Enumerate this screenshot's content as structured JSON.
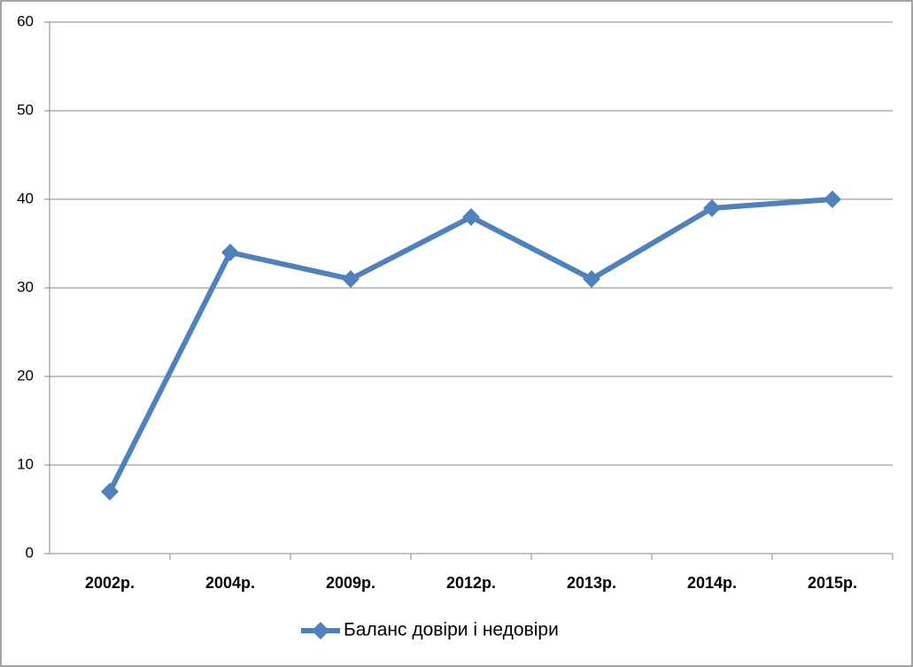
{
  "chart_data": {
    "type": "line",
    "categories": [
      "2002р.",
      "2004р.",
      "2009р.",
      "2012р.",
      "2013р.",
      "2014р.",
      "2015р."
    ],
    "series": [
      {
        "name": "Баланс довіри і недовіри",
        "color": "#4f81bd",
        "values": [
          7,
          34,
          31,
          38,
          31,
          39,
          40
        ]
      }
    ],
    "ylim": [
      0,
      60
    ],
    "yticks": [
      0,
      10,
      20,
      30,
      40,
      50,
      60
    ],
    "grid": true,
    "legend": "bottom"
  }
}
